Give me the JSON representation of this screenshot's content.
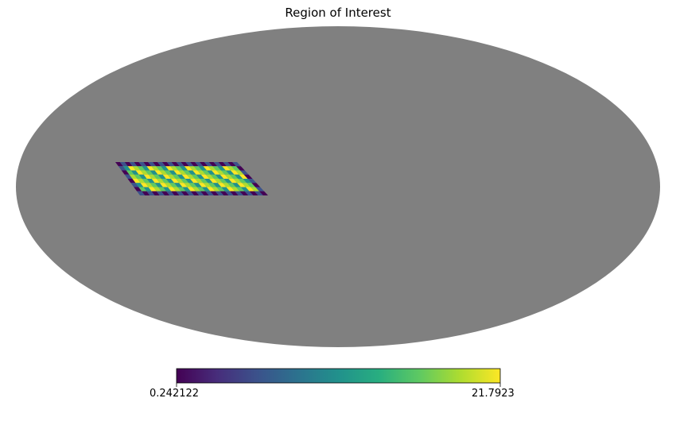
{
  "chart_data": {
    "type": "heatmap",
    "projection": "mollweide",
    "title": "Region of Interest",
    "background_color": "#808080",
    "colormap": "viridis",
    "colorbar": {
      "min_label": "0.242122",
      "max_label": "21.7923",
      "min": 0.242122,
      "max": 21.7923,
      "placement": "bottom"
    },
    "region": {
      "description_values": "strip of pixels with values spanning colormap range",
      "lon_range_deg": [
        98,
        135
      ],
      "lat_range_deg": [
        -2,
        7
      ]
    }
  }
}
